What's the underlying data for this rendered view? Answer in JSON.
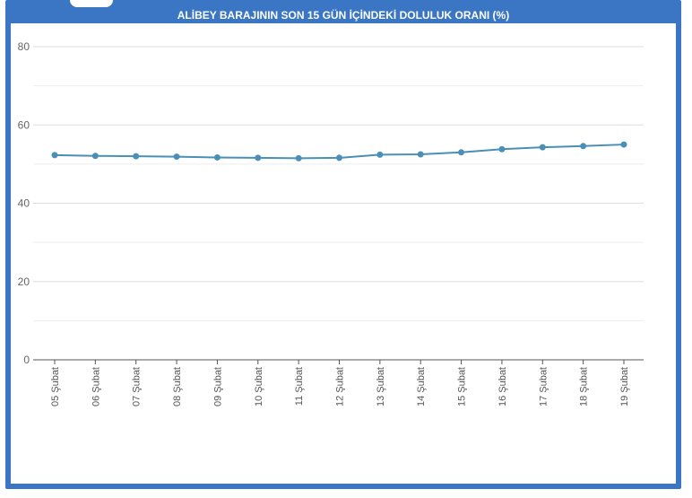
{
  "chart_data": {
    "type": "line",
    "title": "ALİBEY BARAJININ SON 15 GÜN İÇİNDEKİ DOLULUK ORANI (%)",
    "xlabel": "",
    "ylabel": "",
    "ylim": [
      0,
      80
    ],
    "yticks": [
      0,
      20,
      40,
      60,
      80
    ],
    "grid": true,
    "categories": [
      "05 Şubat",
      "06 Şubat",
      "07 Şubat",
      "08 Şubat",
      "09 Şubat",
      "10 Şubat",
      "11 Şubat",
      "12 Şubat",
      "13 Şubat",
      "14 Şubat",
      "15 Şubat",
      "16 Şubat",
      "17 Şubat",
      "18 Şubat",
      "19 Şubat"
    ],
    "series": [
      {
        "values": [
          52.3,
          52.1,
          52.0,
          51.9,
          51.7,
          51.6,
          51.5,
          51.6,
          52.4,
          52.5,
          53.0,
          53.8,
          54.3,
          54.6,
          55.0
        ],
        "color": "#4a8fb5"
      }
    ]
  }
}
